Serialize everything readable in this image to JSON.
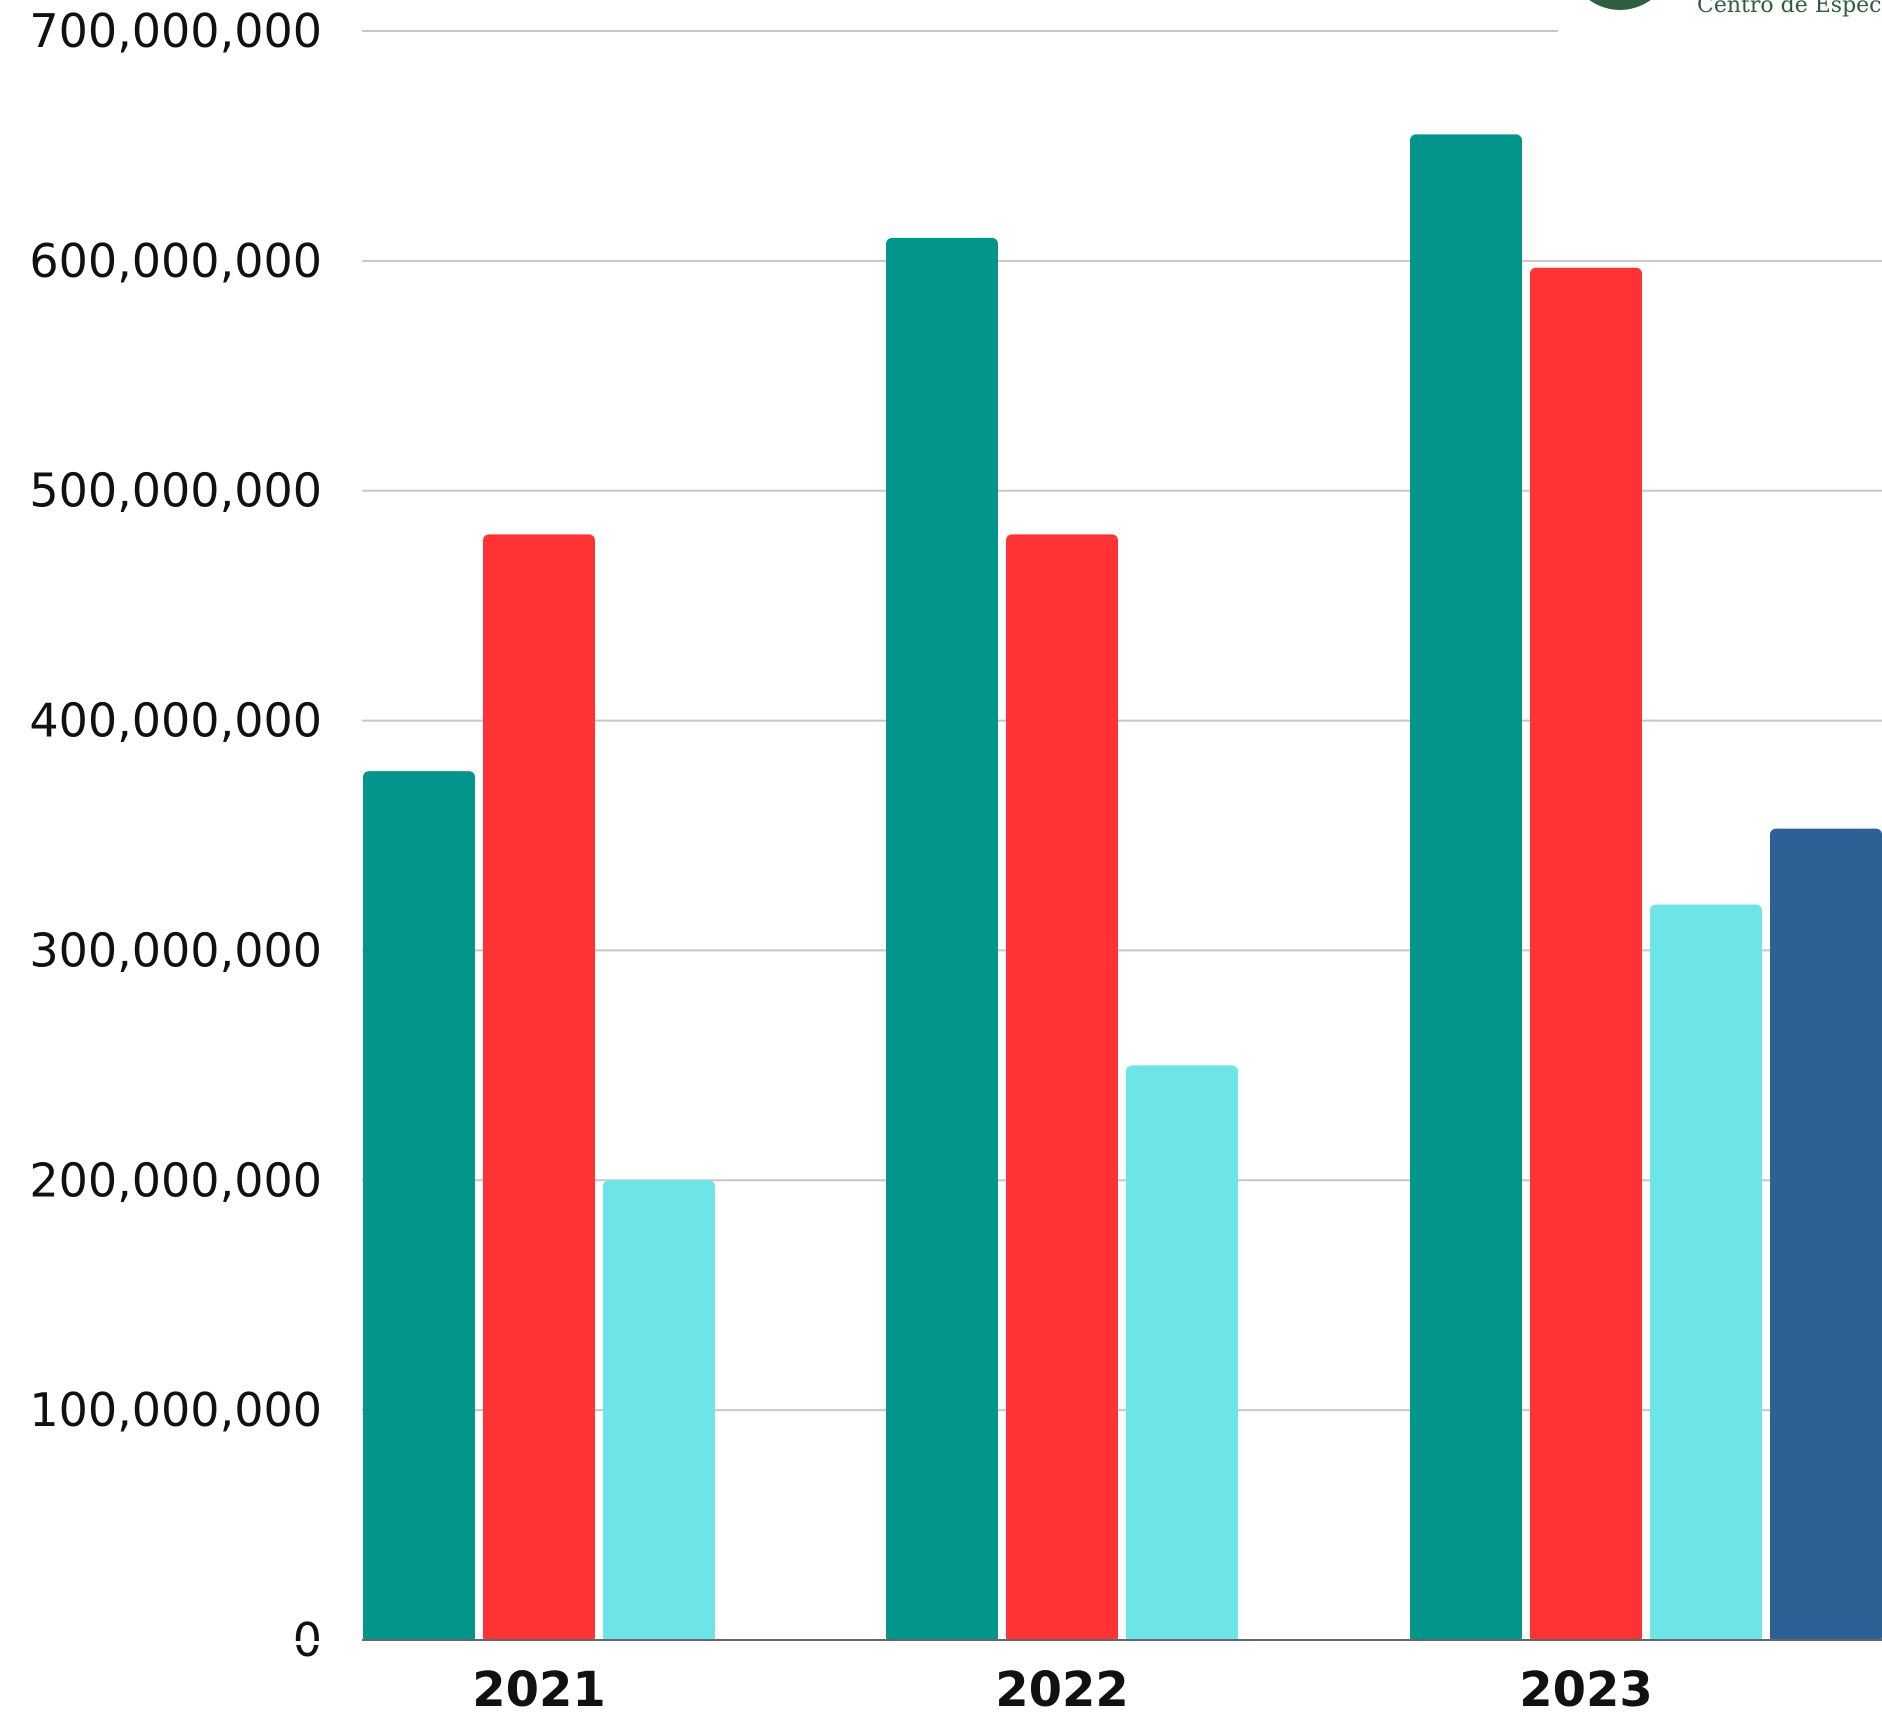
{
  "chart_data": {
    "type": "bar",
    "title": "",
    "xlabel": "",
    "ylabel": "",
    "categories": [
      "2021",
      "2022",
      "2023"
    ],
    "ylim": [
      0,
      700000000
    ],
    "yticks": [
      0,
      100000000,
      200000000,
      300000000,
      400000000,
      500000000,
      600000000,
      700000000
    ],
    "ytick_labels": [
      "0",
      "100,000,000",
      "200,000,000",
      "300,000,000",
      "400,000,000",
      "500,000,000",
      "600,000,000",
      "700,000,000"
    ],
    "grid": true,
    "legend": "none",
    "series": [
      {
        "color": "#02958C",
        "values": [
          378000000,
          610000000,
          655000000
        ]
      },
      {
        "color": "#FF3333",
        "values": [
          481000000,
          481000000,
          597000000
        ]
      },
      {
        "color": "#6DE5E8",
        "values": [
          200000000,
          250000000,
          320000000
        ]
      },
      {
        "color": "#2E6096",
        "values": [
          null,
          null,
          353000000
        ]
      }
    ]
  },
  "logo": {
    "text": "Centro de Espec",
    "color": "#2E5E3E"
  }
}
